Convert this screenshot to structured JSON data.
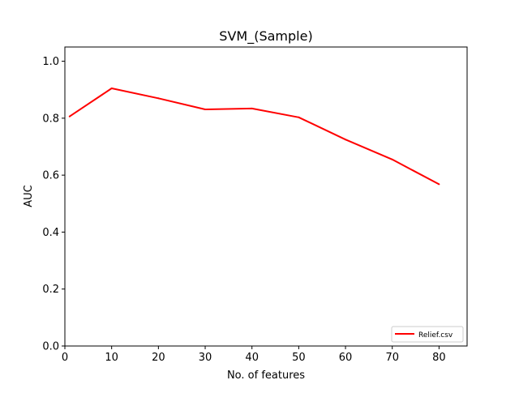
{
  "chart_data": {
    "type": "line",
    "title": "SVM_(Sample)",
    "xlabel": "No. of features",
    "ylabel": "AUC",
    "xlim": [
      0,
      86
    ],
    "ylim": [
      0.0,
      1.05
    ],
    "xticks": [
      0,
      10,
      20,
      30,
      40,
      50,
      60,
      70,
      80
    ],
    "yticks": [
      0.0,
      0.2,
      0.4,
      0.6,
      0.8,
      1.0
    ],
    "ytick_labels": [
      "0.0",
      "0.2",
      "0.4",
      "0.6",
      "0.8",
      "1.0"
    ],
    "grid": false,
    "legend_position": "lower-right",
    "series": [
      {
        "name": "Relief.csv",
        "color": "#ff0000",
        "x": [
          1,
          10,
          20,
          30,
          40,
          50,
          60,
          70,
          80
        ],
        "y": [
          0.806,
          0.905,
          0.87,
          0.831,
          0.834,
          0.803,
          0.725,
          0.655,
          0.568
        ]
      }
    ]
  }
}
